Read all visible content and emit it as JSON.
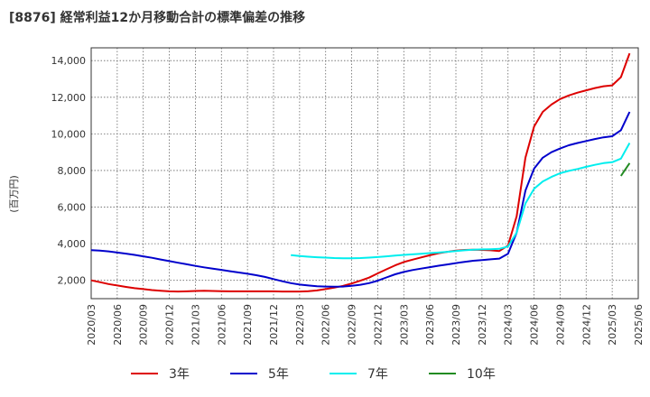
{
  "chart_data": {
    "type": "line",
    "title": "[8876]  経常利益12か月移動合計の標準偏差の推移",
    "ylabel": "(百万円)",
    "xlabel": "",
    "ylim": [
      1000,
      14700
    ],
    "yticks": [
      2000,
      4000,
      6000,
      8000,
      10000,
      12000,
      14000
    ],
    "ytick_labels": [
      "2,000",
      "4,000",
      "6,000",
      "8,000",
      "10,000",
      "12,000",
      "14,000"
    ],
    "xticks": [
      "2020/03",
      "2020/06",
      "2020/09",
      "2020/12",
      "2021/03",
      "2021/06",
      "2021/09",
      "2021/12",
      "2022/03",
      "2022/06",
      "2022/09",
      "2022/12",
      "2023/03",
      "2023/06",
      "2023/09",
      "2023/12",
      "2024/03",
      "2024/06",
      "2024/09",
      "2024/12",
      "2025/03",
      "2025/06"
    ],
    "grid": true,
    "legend_position": "bottom",
    "series": [
      {
        "name": "3年",
        "color": "#dd0000",
        "points": [
          [
            "2020/03",
            2000
          ],
          [
            "2020/04",
            1900
          ],
          [
            "2020/05",
            1800
          ],
          [
            "2020/06",
            1720
          ],
          [
            "2020/07",
            1640
          ],
          [
            "2020/08",
            1570
          ],
          [
            "2020/09",
            1520
          ],
          [
            "2020/10",
            1470
          ],
          [
            "2020/11",
            1430
          ],
          [
            "2020/12",
            1400
          ],
          [
            "2021/01",
            1390
          ],
          [
            "2021/02",
            1400
          ],
          [
            "2021/03",
            1420
          ],
          [
            "2021/04",
            1430
          ],
          [
            "2021/05",
            1420
          ],
          [
            "2021/06",
            1410
          ],
          [
            "2021/07",
            1400
          ],
          [
            "2021/08",
            1400
          ],
          [
            "2021/09",
            1400
          ],
          [
            "2021/10",
            1400
          ],
          [
            "2021/11",
            1400
          ],
          [
            "2021/12",
            1400
          ],
          [
            "2022/01",
            1390
          ],
          [
            "2022/02",
            1390
          ],
          [
            "2022/03",
            1390
          ],
          [
            "2022/04",
            1410
          ],
          [
            "2022/05",
            1450
          ],
          [
            "2022/06",
            1520
          ],
          [
            "2022/07",
            1600
          ],
          [
            "2022/08",
            1700
          ],
          [
            "2022/09",
            1830
          ],
          [
            "2022/10",
            1980
          ],
          [
            "2022/11",
            2150
          ],
          [
            "2022/12",
            2380
          ],
          [
            "2023/01",
            2600
          ],
          [
            "2023/02",
            2820
          ],
          [
            "2023/03",
            3000
          ],
          [
            "2023/04",
            3130
          ],
          [
            "2023/05",
            3250
          ],
          [
            "2023/06",
            3370
          ],
          [
            "2023/07",
            3480
          ],
          [
            "2023/08",
            3560
          ],
          [
            "2023/09",
            3620
          ],
          [
            "2023/10",
            3660
          ],
          [
            "2023/11",
            3670
          ],
          [
            "2023/12",
            3660
          ],
          [
            "2024/01",
            3640
          ],
          [
            "2024/02",
            3600
          ],
          [
            "2024/03",
            3900
          ],
          [
            "2024/04",
            5500
          ],
          [
            "2024/05",
            8700
          ],
          [
            "2024/06",
            10400
          ],
          [
            "2024/07",
            11200
          ],
          [
            "2024/08",
            11600
          ],
          [
            "2024/09",
            11900
          ],
          [
            "2024/10",
            12100
          ],
          [
            "2024/11",
            12250
          ],
          [
            "2024/12",
            12380
          ],
          [
            "2025/01",
            12500
          ],
          [
            "2025/02",
            12600
          ],
          [
            "2025/03",
            12650
          ],
          [
            "2025/04",
            13100
          ],
          [
            "2025/05",
            14400
          ]
        ]
      },
      {
        "name": "5年",
        "color": "#0000cc",
        "points": [
          [
            "2020/03",
            3650
          ],
          [
            "2020/04",
            3620
          ],
          [
            "2020/05",
            3580
          ],
          [
            "2020/06",
            3520
          ],
          [
            "2020/07",
            3460
          ],
          [
            "2020/08",
            3390
          ],
          [
            "2020/09",
            3310
          ],
          [
            "2020/10",
            3230
          ],
          [
            "2020/11",
            3140
          ],
          [
            "2020/12",
            3050
          ],
          [
            "2021/01",
            2960
          ],
          [
            "2021/02",
            2880
          ],
          [
            "2021/03",
            2790
          ],
          [
            "2021/04",
            2710
          ],
          [
            "2021/05",
            2640
          ],
          [
            "2021/06",
            2570
          ],
          [
            "2021/07",
            2500
          ],
          [
            "2021/08",
            2430
          ],
          [
            "2021/09",
            2360
          ],
          [
            "2021/10",
            2280
          ],
          [
            "2021/11",
            2190
          ],
          [
            "2021/12",
            2070
          ],
          [
            "2022/01",
            1950
          ],
          [
            "2022/02",
            1850
          ],
          [
            "2022/03",
            1770
          ],
          [
            "2022/04",
            1720
          ],
          [
            "2022/05",
            1680
          ],
          [
            "2022/06",
            1660
          ],
          [
            "2022/07",
            1650
          ],
          [
            "2022/08",
            1660
          ],
          [
            "2022/09",
            1700
          ],
          [
            "2022/10",
            1760
          ],
          [
            "2022/11",
            1850
          ],
          [
            "2022/12",
            1980
          ],
          [
            "2023/01",
            2160
          ],
          [
            "2023/02",
            2330
          ],
          [
            "2023/03",
            2460
          ],
          [
            "2023/04",
            2560
          ],
          [
            "2023/05",
            2640
          ],
          [
            "2023/06",
            2720
          ],
          [
            "2023/07",
            2800
          ],
          [
            "2023/08",
            2870
          ],
          [
            "2023/09",
            2940
          ],
          [
            "2023/10",
            3010
          ],
          [
            "2023/11",
            3070
          ],
          [
            "2023/12",
            3110
          ],
          [
            "2024/01",
            3150
          ],
          [
            "2024/02",
            3190
          ],
          [
            "2024/03",
            3450
          ],
          [
            "2024/04",
            4600
          ],
          [
            "2024/05",
            6900
          ],
          [
            "2024/06",
            8100
          ],
          [
            "2024/07",
            8700
          ],
          [
            "2024/08",
            9000
          ],
          [
            "2024/09",
            9200
          ],
          [
            "2024/10",
            9380
          ],
          [
            "2024/11",
            9500
          ],
          [
            "2024/12",
            9610
          ],
          [
            "2025/01",
            9720
          ],
          [
            "2025/02",
            9810
          ],
          [
            "2025/03",
            9870
          ],
          [
            "2025/04",
            10200
          ],
          [
            "2025/05",
            11200
          ]
        ]
      },
      {
        "name": "7年",
        "color": "#00eeee",
        "points": [
          [
            "2022/02",
            3380
          ],
          [
            "2022/03",
            3330
          ],
          [
            "2022/04",
            3290
          ],
          [
            "2022/05",
            3260
          ],
          [
            "2022/06",
            3240
          ],
          [
            "2022/07",
            3220
          ],
          [
            "2022/08",
            3210
          ],
          [
            "2022/09",
            3210
          ],
          [
            "2022/10",
            3220
          ],
          [
            "2022/11",
            3240
          ],
          [
            "2022/12",
            3270
          ],
          [
            "2023/01",
            3310
          ],
          [
            "2023/02",
            3350
          ],
          [
            "2023/03",
            3390
          ],
          [
            "2023/04",
            3420
          ],
          [
            "2023/05",
            3450
          ],
          [
            "2023/06",
            3490
          ],
          [
            "2023/07",
            3520
          ],
          [
            "2023/08",
            3560
          ],
          [
            "2023/09",
            3600
          ],
          [
            "2023/10",
            3640
          ],
          [
            "2023/11",
            3670
          ],
          [
            "2023/12",
            3690
          ],
          [
            "2024/01",
            3700
          ],
          [
            "2024/02",
            3720
          ],
          [
            "2024/03",
            3850
          ],
          [
            "2024/04",
            4600
          ],
          [
            "2024/05",
            6200
          ],
          [
            "2024/06",
            7000
          ],
          [
            "2024/07",
            7400
          ],
          [
            "2024/08",
            7650
          ],
          [
            "2024/09",
            7850
          ],
          [
            "2024/10",
            7980
          ],
          [
            "2024/11",
            8080
          ],
          [
            "2024/12",
            8200
          ],
          [
            "2025/01",
            8310
          ],
          [
            "2025/02",
            8400
          ],
          [
            "2025/03",
            8450
          ],
          [
            "2025/04",
            8650
          ],
          [
            "2025/05",
            9500
          ]
        ]
      },
      {
        "name": "10年",
        "color": "#228b22",
        "points": [
          [
            "2025/04",
            7700
          ],
          [
            "2025/05",
            8400
          ]
        ]
      }
    ]
  }
}
